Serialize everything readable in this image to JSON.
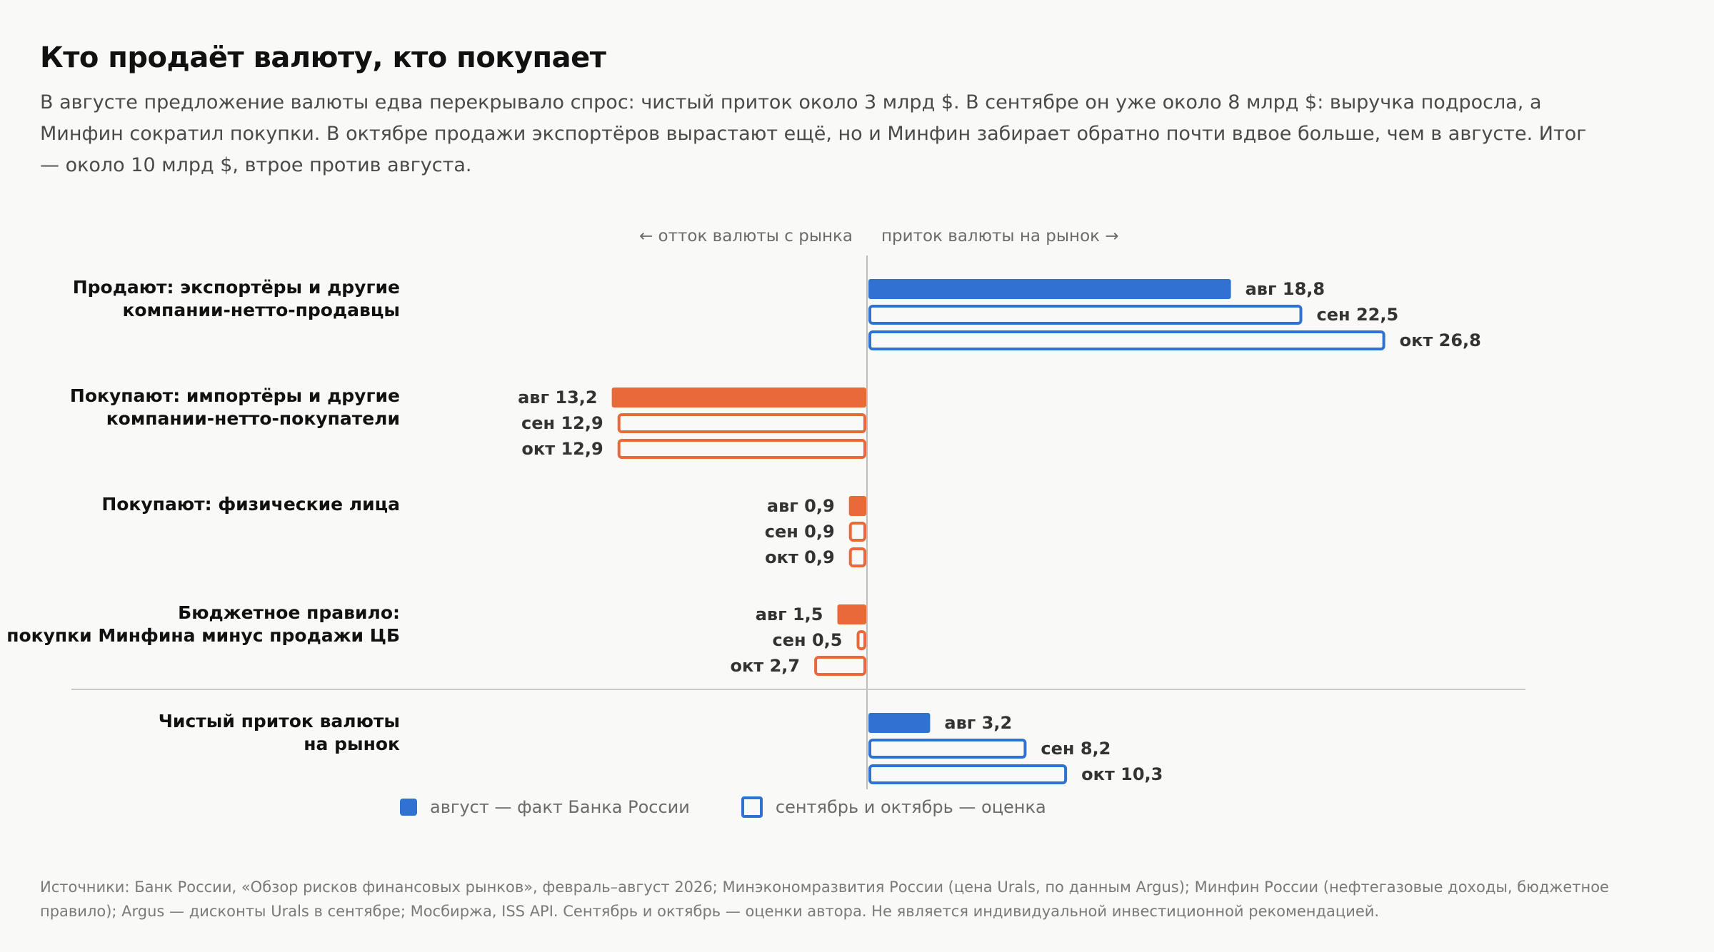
{
  "title": "Кто продаёт валюту, кто покупает",
  "subtitle": "В августе предложение валюты едва перекрывало спрос: чистый приток около 3 млрд $. В сентябре он уже около 8 млрд $: выручка подросла, а Минфин сократил покупки. В октябре продажи экспортёров вырастают ещё, но и Минфин забирает обратно почти вдвое больше, чем в августе. Итог — около 10 млрд $, втрое против августа.",
  "direction_left": "← отток валюты с рынка",
  "direction_right": "приток валюты на рынок →",
  "legend": {
    "actual": "август — факт Банка России",
    "estimate": "сентябрь и октябрь — оценка"
  },
  "source": "Источники: Банк России, «Обзор рисков финансовых рынков», февраль–август 2026; Минэкономразвития России (цена Urals, по данным Argus); Минфин России (нефтегазовые доходы, бюджетное правило); Argus — дисконты Urals в сентябре; Мосбиржа, ISS API. Сентябрь и октябрь — оценки автора. Не является индивидуальной инвестиционной рекомендацией.",
  "colors": {
    "inflow": "#2f72d0",
    "outflow": "#e8693a",
    "axis": "#bdbdbd",
    "separator": "#c8c8c8"
  },
  "chart_data": {
    "type": "bar",
    "orientation": "horizontal",
    "unit": "млрд $",
    "categories": [
      {
        "label_lines": [
          "Продают: экспортёры и другие",
          "компании-нетто-продавцы"
        ],
        "direction": "inflow",
        "net": false
      },
      {
        "label_lines": [
          "Покупают: импортёры и другие",
          "компании-нетто-покупатели"
        ],
        "direction": "outflow",
        "net": false
      },
      {
        "label_lines": [
          "Покупают: физические лица"
        ],
        "direction": "outflow",
        "net": false
      },
      {
        "label_lines": [
          "Бюджетное правило:",
          "покупки Минфина минус продажи ЦБ"
        ],
        "direction": "outflow",
        "net": false
      },
      {
        "label_lines": [
          "Чистый приток валюты",
          "на рынок"
        ],
        "direction": "inflow",
        "net": true
      }
    ],
    "series": [
      {
        "name": "авг",
        "style": "filled",
        "values": [
          18.8,
          -13.2,
          -0.9,
          -1.5,
          3.2
        ],
        "labels": [
          "авг 18,8",
          "авг 13,2",
          "авг 0,9",
          "авг 1,5",
          "авг 3,2"
        ]
      },
      {
        "name": "сен",
        "style": "outline",
        "values": [
          22.5,
          -12.9,
          -0.9,
          -0.5,
          8.2
        ],
        "labels": [
          "сен 22,5",
          "сен 12,9",
          "сен 0,9",
          "сен 0,5",
          "сен 8,2"
        ]
      },
      {
        "name": "окт",
        "style": "outline",
        "values": [
          26.8,
          -12.9,
          -0.9,
          -2.7,
          10.3
        ],
        "labels": [
          "окт 26,8",
          "окт 12,9",
          "окт 0,9",
          "окт 2,7",
          "окт 10,3"
        ]
      }
    ]
  }
}
